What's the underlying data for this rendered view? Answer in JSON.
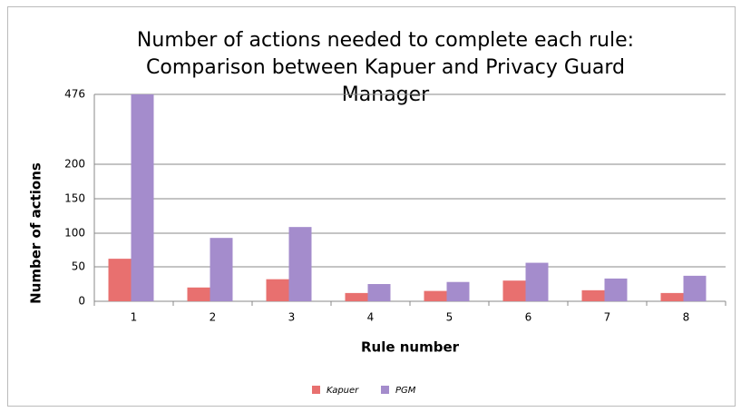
{
  "chart_data": {
    "type": "bar",
    "title": [
      "Number of actions needed to complete each rule:",
      "Comparison between Kapuer and Privacy Guard",
      "Manager"
    ],
    "x_label": "Rule number",
    "y_label": "Number of actions",
    "categories": [
      "1",
      "2",
      "3",
      "4",
      "5",
      "6",
      "7",
      "8"
    ],
    "series": [
      {
        "name": "Kapuer",
        "color": "#e8706f",
        "values": [
          62,
          20,
          32,
          12,
          15,
          30,
          16,
          12
        ]
      },
      {
        "name": "PGM",
        "color": "#a48ccc",
        "values": [
          476,
          93,
          109,
          25,
          28,
          56,
          33,
          37
        ]
      }
    ],
    "ylim": [
      0,
      476
    ],
    "yticks": [
      0,
      50,
      100,
      150,
      200,
      476
    ],
    "grid": true,
    "legend": "bottom"
  }
}
